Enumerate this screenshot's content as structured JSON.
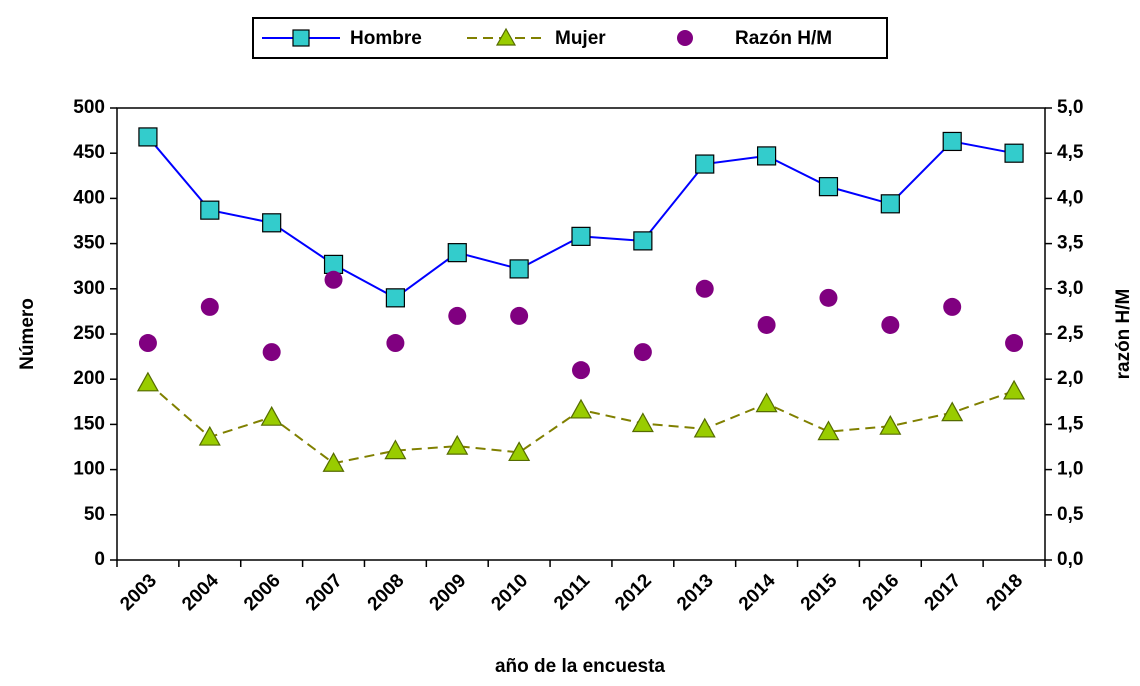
{
  "chart_data": {
    "type": "line",
    "x_label": "año de la encuesta",
    "y_label": "Número",
    "y2_label": "razón H/M",
    "categories": [
      "2003",
      "2004",
      "2006",
      "2007",
      "2008",
      "2009",
      "2010",
      "2011",
      "2012",
      "2013",
      "2014",
      "2015",
      "2016",
      "2017",
      "2018"
    ],
    "series": [
      {
        "name": "Hombre",
        "color": "#0000ff",
        "marker_color": "#33cccc",
        "marker": "square",
        "line": "solid",
        "values": [
          468,
          387,
          373,
          327,
          290,
          340,
          322,
          358,
          353,
          438,
          447,
          413,
          394,
          463,
          450
        ]
      },
      {
        "name": "Mujer",
        "color": "#808000",
        "marker_color": "#99cc00",
        "marker": "triangle",
        "line": "dashed",
        "values": [
          196,
          136,
          158,
          107,
          121,
          126,
          119,
          166,
          151,
          145,
          173,
          142,
          148,
          163,
          187
        ]
      },
      {
        "name": "Razón H/M",
        "color": "#800080",
        "marker_color": "#800080",
        "marker": "circle",
        "line": "none",
        "axis": "y2",
        "values": [
          2.4,
          2.8,
          2.3,
          3.1,
          2.4,
          2.7,
          2.7,
          2.1,
          2.3,
          3.0,
          2.6,
          2.9,
          2.6,
          2.8,
          2.4
        ]
      }
    ],
    "ylim": [
      0,
      500
    ],
    "yticks": [
      0,
      50,
      100,
      150,
      200,
      250,
      300,
      350,
      400,
      450,
      500
    ],
    "y2lim": [
      0,
      5
    ],
    "y2ticks": [
      {
        "value": 0,
        "label": "0,0"
      },
      {
        "value": 0.5,
        "label": "0,5"
      },
      {
        "value": 1,
        "label": "1,0"
      },
      {
        "value": 1.5,
        "label": "1,5"
      },
      {
        "value": 2,
        "label": "2,0"
      },
      {
        "value": 2.5,
        "label": "2,5"
      },
      {
        "value": 3,
        "label": "3,0"
      },
      {
        "value": 3.5,
        "label": "3,5"
      },
      {
        "value": 4,
        "label": "4,0"
      },
      {
        "value": 4.5,
        "label": "4,5"
      },
      {
        "value": 5,
        "label": "5,0"
      }
    ],
    "grid": false,
    "legend": "top"
  }
}
